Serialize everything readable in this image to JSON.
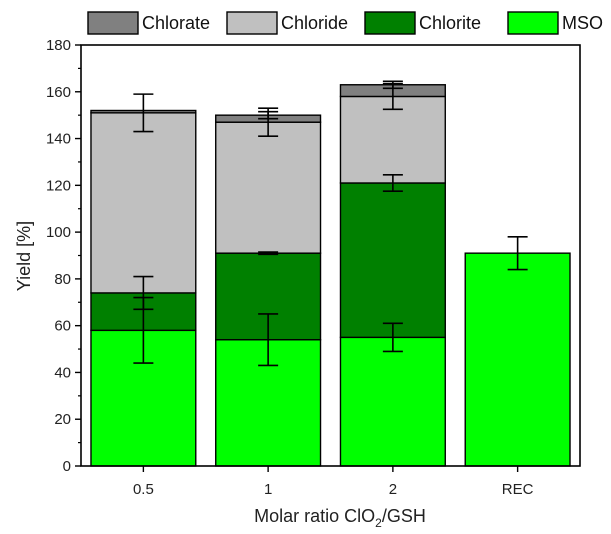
{
  "chart_data": {
    "type": "bar",
    "stacked": true,
    "categories": [
      "0.5",
      "1",
      "2",
      "REC"
    ],
    "xlabel_prefix": "Molar ratio ClO",
    "xlabel_sub": "2",
    "xlabel_suffix": "/GSH",
    "ylabel": "Yield [%]",
    "ylim": [
      0,
      180
    ],
    "yticks": [
      0,
      20,
      40,
      60,
      80,
      100,
      120,
      140,
      160,
      180
    ],
    "legend_position": "top",
    "series": [
      {
        "name": "MSO",
        "color": "#00ff00",
        "values": [
          58,
          54,
          55,
          91
        ],
        "errors": [
          14,
          11,
          6,
          7
        ]
      },
      {
        "name": "Chlorite",
        "color": "#008000",
        "values": [
          16,
          37,
          66,
          0
        ],
        "errors": [
          7,
          0.5,
          3.5,
          null
        ]
      },
      {
        "name": "Chloride",
        "color": "#c0c0c0",
        "values": [
          77,
          56,
          37,
          0
        ],
        "errors": [
          8,
          6,
          5.5,
          null
        ]
      },
      {
        "name": "Chlorate",
        "color": "#808080",
        "values": [
          1,
          3,
          5,
          0
        ],
        "errors": [
          null,
          1.5,
          1.5,
          null
        ]
      }
    ],
    "legend_order": [
      "Chlorate",
      "Chloride",
      "Chlorite",
      "MSO"
    ]
  }
}
